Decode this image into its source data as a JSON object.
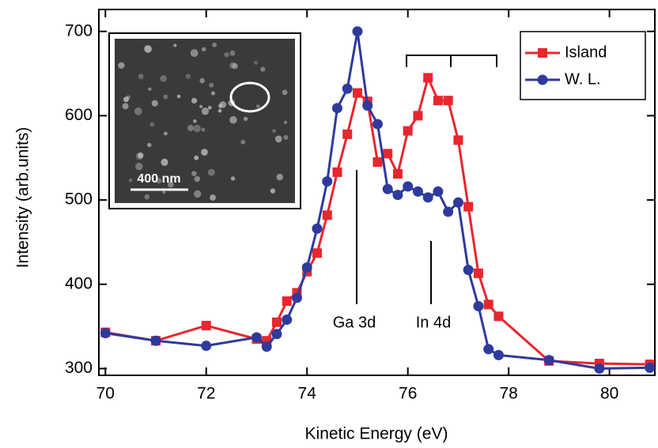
{
  "chart_data": {
    "type": "line",
    "x_label": "Kinetic Energy (eV)",
    "y_label": "Intensity (arb.units)",
    "x": [
      70,
      71,
      72,
      73,
      73.2,
      73.4,
      73.6,
      73.8,
      74,
      74.2,
      74.4,
      74.6,
      74.8,
      75,
      75.2,
      75.4,
      75.6,
      75.8,
      76,
      76.2,
      76.4,
      76.6,
      76.8,
      77,
      77.2,
      77.4,
      77.6,
      77.8,
      78.8,
      79.8,
      80.8
    ],
    "series": [
      {
        "name": "Island",
        "color": "#e8262f",
        "marker": "square",
        "values": [
          343,
          333,
          351,
          335,
          333,
          355,
          380,
          390,
          415,
          437,
          482,
          533,
          578,
          627,
          617,
          545,
          555,
          531,
          582,
          600,
          645,
          618,
          618,
          571,
          492,
          413,
          376,
          362,
          309,
          306,
          305
        ]
      },
      {
        "name": "W. L.",
        "color": "#2e3a9c",
        "marker": "circle",
        "values": [
          342,
          333,
          327,
          337,
          326,
          341,
          358,
          384,
          420,
          466,
          522,
          609,
          632,
          700,
          612,
          590,
          513,
          506,
          516,
          510,
          503,
          510,
          486,
          497,
          417,
          374,
          323,
          316,
          310,
          300,
          301
        ]
      }
    ],
    "xlim": [
      69.87,
      80.9
    ],
    "xticks": [
      70,
      72,
      74,
      76,
      78,
      80
    ],
    "ylim": [
      292,
      726
    ],
    "yticks": [
      300,
      400,
      500,
      600,
      700
    ],
    "legend": "top-right",
    "annotations": [
      "Ga 3d",
      "In 4d"
    ],
    "inset_label": "400 nm"
  }
}
